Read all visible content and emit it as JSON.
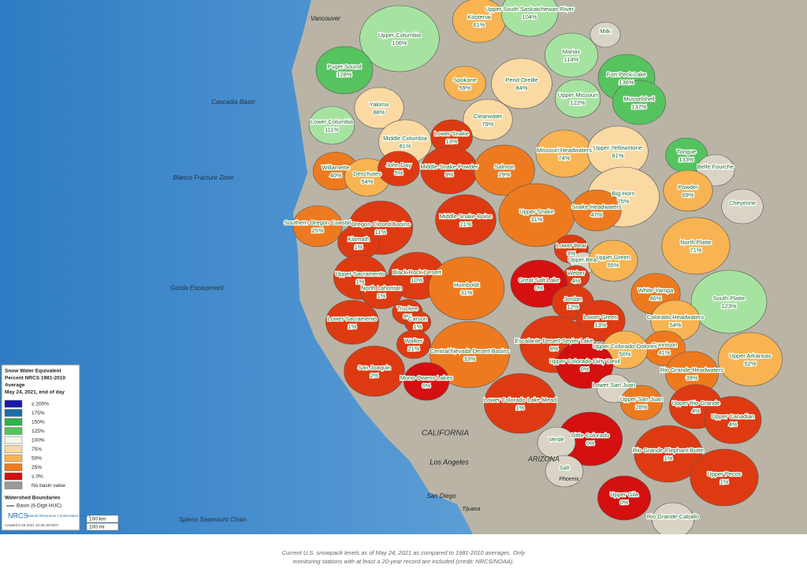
{
  "map": {
    "basins": [
      {
        "name": "Kootenai",
        "percent": "61%"
      },
      {
        "name": "Upper South Saskatchewan River",
        "percent": "104%"
      },
      {
        "name": "Milk",
        "percent": null
      },
      {
        "name": "Upper Columbia",
        "percent": "106%"
      },
      {
        "name": "Puget Sound",
        "percent": "128%"
      },
      {
        "name": "Marias",
        "percent": "114%"
      },
      {
        "name": "Spokane",
        "percent": "59%"
      },
      {
        "name": "Pend Oreille",
        "percent": "84%"
      },
      {
        "name": "Fort Peck Lake",
        "percent": "136%"
      },
      {
        "name": "Upper Missouri",
        "percent": "122%"
      },
      {
        "name": "Musselshell",
        "percent": "137%"
      },
      {
        "name": "Yakima",
        "percent": "88%"
      },
      {
        "name": "Clearwater",
        "percent": "79%"
      },
      {
        "name": "Lower Columbia",
        "percent": "111%"
      },
      {
        "name": "Middle Columbia",
        "percent": "81%"
      },
      {
        "name": "Lower Snake",
        "percent": "13%"
      },
      {
        "name": "Missouri Headwaters",
        "percent": "74%"
      },
      {
        "name": "Upper Yellowstone",
        "percent": "81%"
      },
      {
        "name": "Tongue",
        "percent": "133%"
      },
      {
        "name": "Willamette",
        "percent": "40%"
      },
      {
        "name": "Deschutes",
        "percent": "54%"
      },
      {
        "name": "John Day",
        "percent": "5%"
      },
      {
        "name": "Middle Snake-Powder",
        "percent": "9%"
      },
      {
        "name": "Salmon",
        "percent": "29%"
      },
      {
        "name": "Belle Fourche",
        "percent": null
      },
      {
        "name": "Big Horn",
        "percent": "75%"
      },
      {
        "name": "Powder",
        "percent": "69%"
      },
      {
        "name": "Cheyenne",
        "percent": null
      },
      {
        "name": "Southern Oregon Coastal",
        "percent": "25%"
      },
      {
        "name": "Oregon Closed Basins",
        "percent": "11%"
      },
      {
        "name": "Middle Snake-Boise",
        "percent": "21%"
      },
      {
        "name": "Upper Snake",
        "percent": "31%"
      },
      {
        "name": "Snake Headwaters",
        "percent": "47%"
      },
      {
        "name": "Klamath",
        "percent": "1%"
      },
      {
        "name": "North Platte",
        "percent": "71%"
      },
      {
        "name": "Lower Bear",
        "percent": "3%"
      },
      {
        "name": "Upper Bear",
        "percent": null
      },
      {
        "name": "Upper Green",
        "percent": "55%"
      },
      {
        "name": "Weber",
        "percent": "4%"
      },
      {
        "name": "Upper Sacramento",
        "percent": "1%"
      },
      {
        "name": "Black Rock Desert",
        "percent": "10%"
      },
      {
        "name": "North Lahontan",
        "percent": "1%"
      },
      {
        "name": "Great Salt Lake",
        "percent": "0%"
      },
      {
        "name": "Humboldt",
        "percent": "31%"
      },
      {
        "name": "White-Yampa",
        "percent": "46%"
      },
      {
        "name": "South Platte",
        "percent": "123%"
      },
      {
        "name": "Jordan",
        "percent": "12%"
      },
      {
        "name": "Truckee",
        "percent": "9%"
      },
      {
        "name": "Carson",
        "percent": "1%"
      },
      {
        "name": "Lower Sacramento",
        "percent": "1%"
      },
      {
        "name": "Lower Green",
        "percent": "13%"
      },
      {
        "name": "Colorado Headwaters",
        "percent": "54%"
      },
      {
        "name": "Gunnison",
        "percent": "41%"
      },
      {
        "name": "Walker",
        "percent": "21%"
      },
      {
        "name": "Escalante Desert-Sevier Lake",
        "percent": "8%"
      },
      {
        "name": "Upper Colorado-Dolores",
        "percent": "50%"
      },
      {
        "name": "Central Nevada Desert Basins",
        "percent": "33%"
      },
      {
        "name": "Upper Arkansas",
        "percent": "52%"
      },
      {
        "name": "Upper Colorado-Dirty Devil",
        "percent": "0%"
      },
      {
        "name": "Rio Grande Headwaters",
        "percent": "39%"
      },
      {
        "name": "San Joaquin",
        "percent": "2%"
      },
      {
        "name": "Mono-Owens Lakes",
        "percent": "0%"
      },
      {
        "name": "Lower San Juan",
        "percent": null
      },
      {
        "name": "Lower Colorado-Lake Mead",
        "percent": "1%"
      },
      {
        "name": "Upper San Juan",
        "percent": "28%"
      },
      {
        "name": "Upper Rio Grande",
        "percent": "4%"
      },
      {
        "name": "Upper Canadian",
        "percent": "4%"
      },
      {
        "name": "Little Colorado",
        "percent": "0%"
      },
      {
        "name": "Verde",
        "percent": null
      },
      {
        "name": "Rio Grande-Elephant Butte",
        "percent": "1%"
      },
      {
        "name": "Salt",
        "percent": null
      },
      {
        "name": "Upper Pecos",
        "percent": "1%"
      },
      {
        "name": "Upper Gila",
        "percent": "0%"
      },
      {
        "name": "Rio Grande-Caballo",
        "percent": null
      }
    ],
    "places": [
      "Vancouver",
      "Cascadia Basin",
      "Blanco Fracture Zone",
      "Gorda Escarpment",
      "CALIFORNIA",
      "Los Angeles",
      "San Diego",
      "Tijuana",
      "Phoenix",
      "ARIZONA",
      "Spiess Seamount Chain"
    ],
    "legend": {
      "title": [
        "Snow Water Equivalent",
        "Percent NRCS 1981-2010",
        "Average",
        "May 24, 2021, end of day"
      ],
      "items": [
        "≥ 200%",
        "175%",
        "150%",
        "125%",
        "100%",
        "75%",
        "50%",
        "25%",
        "≤ 0%",
        "No basin value"
      ],
      "boundaries_title": "Watershed Boundaries",
      "boundary_item": "Basin (6-Digit HUC)",
      "agency": "NRCS",
      "agency_full": "Natural Resources Conservation Service",
      "created": "Created 5-26-2021 10:35 AM EDT"
    },
    "scale": [
      "100 km",
      "100 mi"
    ]
  },
  "caption": [
    "Current U.S. snowpack levels as of May 24, 2021 as compared to 1981-2010 averages. Only",
    "monitoring stations with at least a 20-year record are included (credit: NRCS/NOAA)."
  ]
}
